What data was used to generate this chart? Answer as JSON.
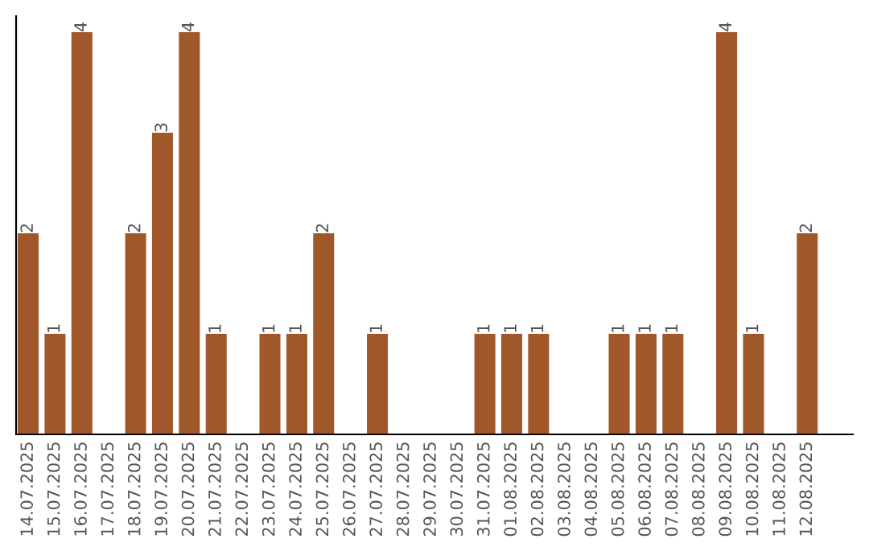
{
  "chart_data": {
    "type": "bar",
    "categories": [
      "14.07.2025",
      "15.07.2025",
      "16.07.2025",
      "17.07.2025",
      "18.07.2025",
      "19.07.2025",
      "20.07.2025",
      "21.07.2025",
      "22.07.2025",
      "23.07.2025",
      "24.07.2025",
      "25.07.2025",
      "26.07.2025",
      "27.07.2025",
      "28.07.2025",
      "29.07.2025",
      "30.07.2025",
      "31.07.2025",
      "01.08.2025",
      "02.08.2025",
      "03.08.2025",
      "04.08.2025",
      "05.08.2025",
      "06.08.2025",
      "07.08.2025",
      "08.08.2025",
      "09.08.2025",
      "10.08.2025",
      "11.08.2025",
      "12.08.2025"
    ],
    "values": [
      2,
      1,
      4,
      0,
      2,
      3,
      4,
      1,
      0,
      1,
      1,
      2,
      0,
      1,
      0,
      0,
      0,
      1,
      1,
      1,
      0,
      0,
      1,
      1,
      1,
      0,
      4,
      1,
      0,
      2
    ],
    "value_labels": [
      "2",
      "1",
      "4",
      null,
      "2",
      "3",
      "4",
      "1",
      null,
      "1",
      "1",
      "2",
      null,
      "1",
      null,
      null,
      null,
      "1",
      "1",
      "1",
      null,
      null,
      "1",
      "1",
      "1",
      null,
      "4",
      "1",
      null,
      "2"
    ],
    "color": "#a0572a",
    "tick_labels": "x",
    "grid": false,
    "legend": false
  }
}
